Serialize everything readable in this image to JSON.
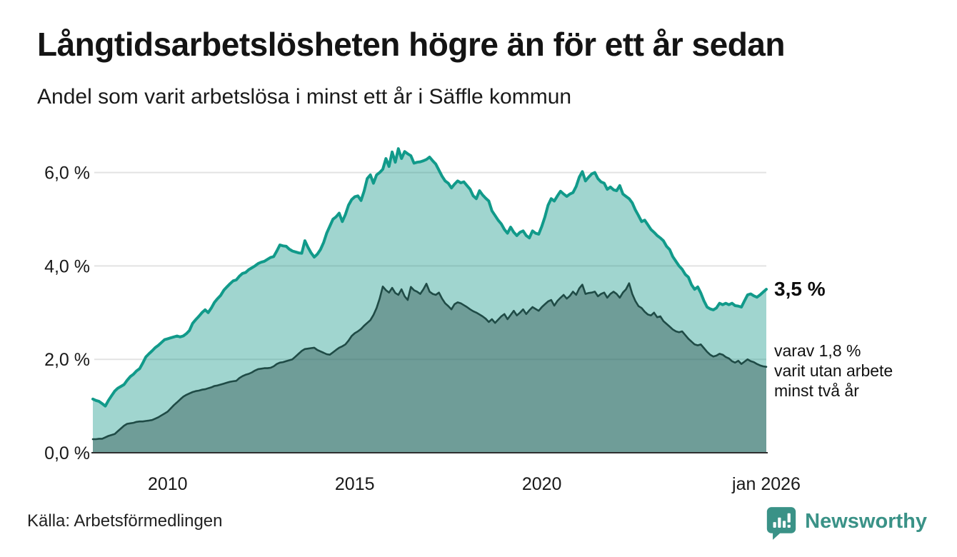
{
  "header": {
    "title": "Långtidsarbetslösheten högre än för ett år sedan",
    "subtitle": "Andel som varit arbetslösa i minst ett år i Säffle kommun"
  },
  "annotations": {
    "latest_total": "3,5 %",
    "latest_sub": "varav 1,8 %\nvarit utan arbete\nminst två år"
  },
  "source": {
    "label": "Källa: Arbetsförmedlingen"
  },
  "branding": {
    "name": "Newsworthy",
    "color": "#3a9287",
    "icon": "newsworthy-speech-bubble-bar-chart-icon"
  },
  "chart_data": {
    "type": "area",
    "title": "Långtidsarbetslösheten högre än för ett år sedan",
    "subtitle": "Andel som varit arbetslösa i minst ett år i Säffle kommun",
    "unit": "%",
    "x_range": [
      2008.0,
      2026.0
    ],
    "y_range": [
      0,
      6.6
    ],
    "grid": "horizontal",
    "gridline_color": "#e3e3e3",
    "axis_color": "#2f2f2f",
    "tick_color": "#191919",
    "y_ticks": [
      {
        "label": "0,0 %",
        "value": 0
      },
      {
        "label": "2,0 %",
        "value": 2
      },
      {
        "label": "4,0 %",
        "value": 4
      },
      {
        "label": "6,0 %",
        "value": 6
      }
    ],
    "x_ticks": [
      {
        "label": "2010",
        "value": 2010
      },
      {
        "label": "2015",
        "value": 2015
      },
      {
        "label": "2020",
        "value": 2020
      },
      {
        "label": "jan 2026",
        "value": 2026
      }
    ],
    "latest": {
      "total_min_one_year": 3.5,
      "min_two_years": 1.8
    },
    "series": [
      {
        "name": "arbetslösa i minst ett år",
        "line_color": "#119a8a",
        "fill_color": "rgba(17,150,134,0.40)",
        "line_width": 4,
        "start_year": 2008.0,
        "interval_years": 0.0833333,
        "values": [
          1.15,
          1.12,
          1.1,
          1.05,
          1.0,
          1.12,
          1.22,
          1.32,
          1.38,
          1.42,
          1.46,
          1.55,
          1.63,
          1.68,
          1.75,
          1.8,
          1.92,
          2.05,
          2.12,
          2.18,
          2.25,
          2.3,
          2.36,
          2.42,
          2.44,
          2.46,
          2.48,
          2.5,
          2.48,
          2.5,
          2.55,
          2.62,
          2.77,
          2.85,
          2.92,
          3.0,
          3.06,
          3.0,
          3.1,
          3.22,
          3.3,
          3.37,
          3.48,
          3.55,
          3.62,
          3.68,
          3.7,
          3.78,
          3.84,
          3.86,
          3.92,
          3.96,
          4.0,
          4.05,
          4.08,
          4.1,
          4.14,
          4.18,
          4.2,
          4.32,
          4.45,
          4.43,
          4.42,
          4.36,
          4.32,
          4.3,
          4.28,
          4.27,
          4.54,
          4.4,
          4.28,
          4.19,
          4.25,
          4.35,
          4.5,
          4.7,
          4.85,
          5.0,
          5.05,
          5.13,
          4.95,
          5.1,
          5.3,
          5.42,
          5.48,
          5.5,
          5.4,
          5.6,
          5.87,
          5.95,
          5.77,
          5.95,
          6.0,
          6.07,
          6.3,
          6.13,
          6.44,
          6.22,
          6.51,
          6.3,
          6.45,
          6.4,
          6.36,
          6.2,
          6.22,
          6.23,
          6.25,
          6.28,
          6.33,
          6.25,
          6.18,
          6.05,
          5.92,
          5.82,
          5.77,
          5.67,
          5.75,
          5.82,
          5.78,
          5.8,
          5.72,
          5.64,
          5.5,
          5.44,
          5.61,
          5.52,
          5.45,
          5.39,
          5.18,
          5.08,
          4.98,
          4.9,
          4.78,
          4.7,
          4.83,
          4.72,
          4.65,
          4.72,
          4.75,
          4.65,
          4.6,
          4.75,
          4.7,
          4.68,
          4.85,
          5.05,
          5.3,
          5.44,
          5.39,
          5.5,
          5.6,
          5.54,
          5.49,
          5.54,
          5.57,
          5.7,
          5.9,
          6.02,
          5.82,
          5.9,
          5.97,
          6.0,
          5.87,
          5.8,
          5.77,
          5.64,
          5.69,
          5.63,
          5.61,
          5.72,
          5.54,
          5.49,
          5.44,
          5.35,
          5.2,
          5.08,
          4.95,
          4.98,
          4.88,
          4.78,
          4.72,
          4.65,
          4.6,
          4.54,
          4.42,
          4.35,
          4.2,
          4.1,
          4.0,
          3.93,
          3.82,
          3.76,
          3.6,
          3.5,
          3.55,
          3.42,
          3.25,
          3.12,
          3.08,
          3.06,
          3.1,
          3.2,
          3.17,
          3.2,
          3.17,
          3.2,
          3.15,
          3.14,
          3.12,
          3.25,
          3.38,
          3.4,
          3.36,
          3.33,
          3.38,
          3.44,
          3.5
        ]
      },
      {
        "name": "varit utan arbete minst två år",
        "line_color": "#1f4b46",
        "fill_color": "rgba(52,88,84,0.45)",
        "line_width": 2.6,
        "start_year": 2008.0,
        "interval_years": 0.0833333,
        "values": [
          0.29,
          0.29,
          0.3,
          0.3,
          0.33,
          0.36,
          0.38,
          0.4,
          0.46,
          0.52,
          0.58,
          0.62,
          0.63,
          0.64,
          0.66,
          0.67,
          0.67,
          0.68,
          0.69,
          0.7,
          0.73,
          0.76,
          0.8,
          0.84,
          0.88,
          0.95,
          1.02,
          1.08,
          1.14,
          1.2,
          1.24,
          1.27,
          1.3,
          1.32,
          1.33,
          1.35,
          1.36,
          1.38,
          1.4,
          1.43,
          1.44,
          1.46,
          1.48,
          1.5,
          1.52,
          1.53,
          1.54,
          1.6,
          1.64,
          1.67,
          1.69,
          1.72,
          1.76,
          1.79,
          1.8,
          1.81,
          1.81,
          1.82,
          1.85,
          1.9,
          1.93,
          1.94,
          1.96,
          1.98,
          2.0,
          2.06,
          2.12,
          2.18,
          2.22,
          2.23,
          2.24,
          2.25,
          2.2,
          2.17,
          2.14,
          2.11,
          2.1,
          2.15,
          2.2,
          2.25,
          2.28,
          2.32,
          2.4,
          2.5,
          2.56,
          2.6,
          2.65,
          2.72,
          2.78,
          2.84,
          2.95,
          3.1,
          3.3,
          3.56,
          3.48,
          3.43,
          3.53,
          3.42,
          3.38,
          3.5,
          3.35,
          3.27,
          3.55,
          3.48,
          3.45,
          3.4,
          3.5,
          3.62,
          3.45,
          3.4,
          3.38,
          3.43,
          3.3,
          3.2,
          3.14,
          3.07,
          3.18,
          3.22,
          3.2,
          3.16,
          3.12,
          3.07,
          3.03,
          3.0,
          2.96,
          2.92,
          2.87,
          2.8,
          2.86,
          2.78,
          2.85,
          2.92,
          2.97,
          2.86,
          2.95,
          3.04,
          2.94,
          3.0,
          3.07,
          2.97,
          3.05,
          3.12,
          3.08,
          3.04,
          3.12,
          3.18,
          3.24,
          3.27,
          3.15,
          3.25,
          3.32,
          3.38,
          3.3,
          3.36,
          3.45,
          3.38,
          3.52,
          3.6,
          3.4,
          3.42,
          3.43,
          3.45,
          3.35,
          3.4,
          3.43,
          3.32,
          3.4,
          3.45,
          3.4,
          3.32,
          3.43,
          3.5,
          3.63,
          3.4,
          3.25,
          3.14,
          3.1,
          3.02,
          2.96,
          2.94,
          3.0,
          2.9,
          2.92,
          2.82,
          2.76,
          2.7,
          2.64,
          2.6,
          2.58,
          2.6,
          2.52,
          2.44,
          2.38,
          2.32,
          2.3,
          2.32,
          2.24,
          2.16,
          2.1,
          2.06,
          2.08,
          2.12,
          2.1,
          2.05,
          2.02,
          1.96,
          1.93,
          1.97,
          1.9,
          1.95,
          2.0,
          1.96,
          1.94,
          1.9,
          1.87,
          1.85,
          1.84
        ]
      }
    ]
  }
}
